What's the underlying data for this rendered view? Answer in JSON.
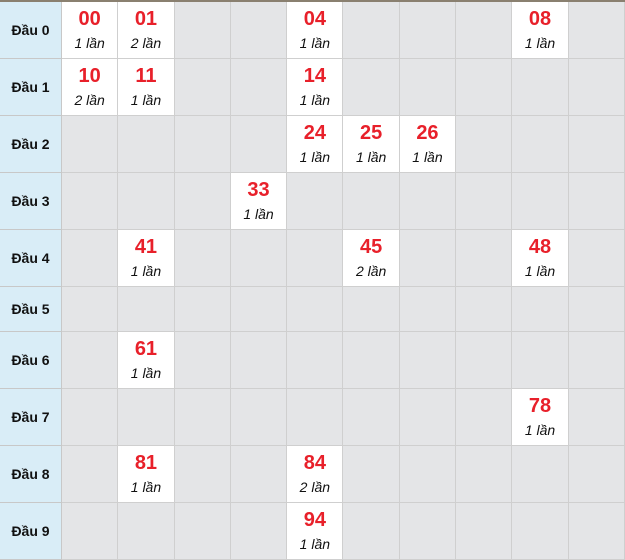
{
  "colors": {
    "number": "#e8202a",
    "header_bg": "#d9edf7",
    "empty_bg": "#e4e5e7",
    "filled_bg": "#ffffff"
  },
  "rows": [
    {
      "label": "Đầu 0",
      "cells": [
        {
          "col": 0,
          "num": "00",
          "count": "1 lần"
        },
        {
          "col": 1,
          "num": "01",
          "count": "2 lần"
        },
        {
          "col": 4,
          "num": "04",
          "count": "1 lần"
        },
        {
          "col": 8,
          "num": "08",
          "count": "1 lần"
        }
      ]
    },
    {
      "label": "Đầu 1",
      "cells": [
        {
          "col": 0,
          "num": "10",
          "count": "2 lần"
        },
        {
          "col": 1,
          "num": "11",
          "count": "1 lần"
        },
        {
          "col": 4,
          "num": "14",
          "count": "1 lần"
        }
      ]
    },
    {
      "label": "Đầu 2",
      "cells": [
        {
          "col": 4,
          "num": "24",
          "count": "1 lần"
        },
        {
          "col": 5,
          "num": "25",
          "count": "1 lần"
        },
        {
          "col": 6,
          "num": "26",
          "count": "1 lần"
        }
      ]
    },
    {
      "label": "Đầu 3",
      "cells": [
        {
          "col": 3,
          "num": "33",
          "count": "1 lần"
        }
      ]
    },
    {
      "label": "Đầu 4",
      "cells": [
        {
          "col": 1,
          "num": "41",
          "count": "1 lần"
        },
        {
          "col": 5,
          "num": "45",
          "count": "2 lần"
        },
        {
          "col": 8,
          "num": "48",
          "count": "1 lần"
        }
      ]
    },
    {
      "label": "Đầu 5",
      "cells": []
    },
    {
      "label": "Đầu 6",
      "cells": [
        {
          "col": 1,
          "num": "61",
          "count": "1 lần"
        }
      ]
    },
    {
      "label": "Đầu 7",
      "cells": [
        {
          "col": 8,
          "num": "78",
          "count": "1 lần"
        }
      ]
    },
    {
      "label": "Đầu 8",
      "cells": [
        {
          "col": 1,
          "num": "81",
          "count": "1 lần"
        },
        {
          "col": 4,
          "num": "84",
          "count": "2 lần"
        }
      ]
    },
    {
      "label": "Đầu 9",
      "cells": [
        {
          "col": 4,
          "num": "94",
          "count": "1 lần"
        }
      ]
    }
  ]
}
